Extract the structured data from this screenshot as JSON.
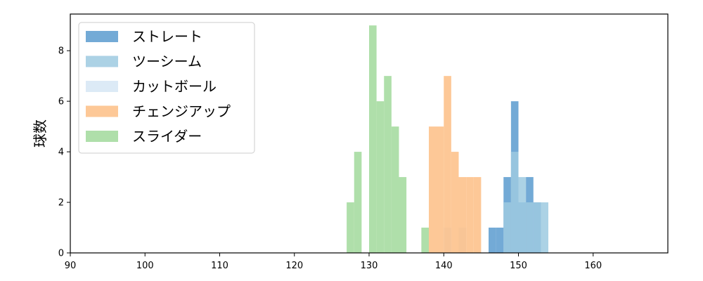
{
  "chart_data": {
    "type": "histogram",
    "title": "",
    "xlabel": "",
    "ylabel": "球数",
    "xlim": [
      90,
      170
    ],
    "ylim": [
      0,
      9.45
    ],
    "xticks": [
      90,
      100,
      110,
      120,
      130,
      140,
      150,
      160
    ],
    "yticks": [
      0,
      2,
      4,
      6,
      8
    ],
    "grid": false,
    "legend_position": "upper-left",
    "series": [
      {
        "name": "ストレート",
        "color": "#5b9bcf",
        "bins": [
          {
            "x0": 146.0,
            "x1": 147.0,
            "count": 1
          },
          {
            "x0": 147.0,
            "x1": 148.0,
            "count": 1
          },
          {
            "x0": 148.0,
            "x1": 149.0,
            "count": 3
          },
          {
            "x0": 149.0,
            "x1": 150.0,
            "count": 6
          },
          {
            "x0": 150.0,
            "x1": 151.0,
            "count": 2
          },
          {
            "x0": 151.0,
            "x1": 152.0,
            "count": 3
          },
          {
            "x0": 152.0,
            "x1": 153.0,
            "count": 2
          }
        ]
      },
      {
        "name": "ツーシーム",
        "color": "#9ecae1",
        "bins": [
          {
            "x0": 148.0,
            "x1": 149.0,
            "count": 2
          },
          {
            "x0": 149.0,
            "x1": 150.0,
            "count": 4
          },
          {
            "x0": 150.0,
            "x1": 151.0,
            "count": 3
          },
          {
            "x0": 151.0,
            "x1": 152.0,
            "count": 2
          },
          {
            "x0": 152.0,
            "x1": 153.0,
            "count": 2
          },
          {
            "x0": 153.0,
            "x1": 154.0,
            "count": 2
          }
        ]
      },
      {
        "name": "カットボール",
        "color": "#d6e6f5",
        "bins": [
          {
            "x0": 140.0,
            "x1": 141.0,
            "count": 1
          },
          {
            "x0": 142.0,
            "x1": 143.0,
            "count": 1
          }
        ]
      },
      {
        "name": "チェンジアップ",
        "color": "#fdbe85",
        "bins": [
          {
            "x0": 138.0,
            "x1": 140.0,
            "count": 5
          },
          {
            "x0": 140.0,
            "x1": 141.0,
            "count": 7
          },
          {
            "x0": 141.0,
            "x1": 142.0,
            "count": 4
          },
          {
            "x0": 142.0,
            "x1": 143.0,
            "count": 3
          },
          {
            "x0": 143.0,
            "x1": 144.0,
            "count": 3
          },
          {
            "x0": 144.0,
            "x1": 145.0,
            "count": 3
          }
        ]
      },
      {
        "name": "スライダー",
        "color": "#a1d99b",
        "bins": [
          {
            "x0": 127.0,
            "x1": 128.0,
            "count": 2
          },
          {
            "x0": 128.0,
            "x1": 129.0,
            "count": 4
          },
          {
            "x0": 130.0,
            "x1": 131.0,
            "count": 9
          },
          {
            "x0": 131.0,
            "x1": 132.0,
            "count": 6
          },
          {
            "x0": 132.0,
            "x1": 133.0,
            "count": 7
          },
          {
            "x0": 133.0,
            "x1": 134.0,
            "count": 5
          },
          {
            "x0": 134.0,
            "x1": 135.0,
            "count": 3
          },
          {
            "x0": 137.0,
            "x1": 138.0,
            "count": 1
          }
        ]
      }
    ]
  }
}
